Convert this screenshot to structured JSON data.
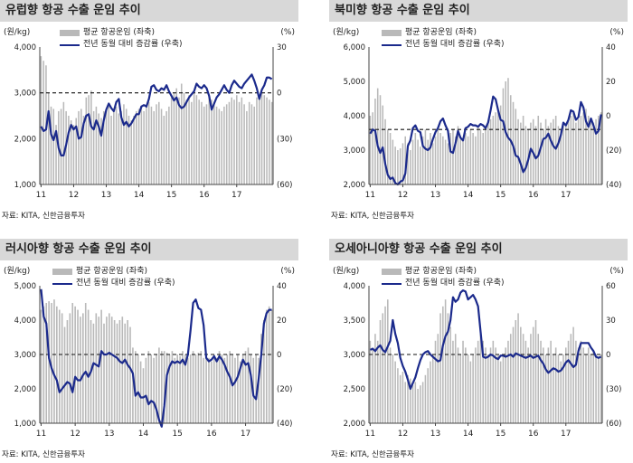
{
  "source_label": "자료: KITA, 신한금융투자",
  "legend": {
    "bar_label": "평균 항공운임 (좌축)",
    "line_label": "전년 동월 대비 증감률 (우축)"
  },
  "colors": {
    "bar": "#b9b9b9",
    "line": "#1b2a8c",
    "title_bg": "#d8d8d8"
  },
  "chart_data": [
    {
      "type": "bar+line",
      "title": "유럽향 항공 수출 운임 추이",
      "left_unit": "(원/kg)",
      "right_unit": "(%)",
      "ylim_left": [
        1000,
        4000
      ],
      "yticks_left": [
        "1,000",
        "2,000",
        "3,000",
        "4,000"
      ],
      "ylim_right": [
        -60,
        30
      ],
      "yticks_right": [
        "(60)",
        "(30)",
        "0",
        "30"
      ],
      "x_ticks": [
        "11",
        "12",
        "13",
        "14",
        "15",
        "16",
        "17"
      ],
      "series": [
        {
          "name": "평균 항공운임 (좌축)",
          "kind": "bar",
          "values": [
            3800,
            3700,
            3600,
            3000,
            2700,
            2650,
            2300,
            2600,
            2650,
            2800,
            2600,
            2500,
            2400,
            2300,
            2450,
            2600,
            2650,
            2500,
            2900,
            2950,
            3050,
            2600,
            2700,
            2550,
            2450,
            2600,
            2650,
            2700,
            2500,
            2600,
            2700,
            2550,
            2600,
            2750,
            2650,
            2500,
            2400,
            2500,
            2600,
            2650,
            2700,
            2600,
            2750,
            2800,
            2700,
            2600,
            2750,
            2800,
            2650,
            2500,
            2600,
            2700,
            2900,
            3000,
            3100,
            2900,
            3200,
            3000,
            2850,
            2950,
            2800,
            3000,
            2950,
            2850,
            2800,
            2700,
            2750,
            2900,
            2850,
            2800,
            2700,
            2650,
            2600,
            2700,
            2750,
            2800,
            2900,
            2850,
            2950,
            2800,
            2900,
            2750,
            2600,
            2800,
            2750,
            2700,
            2900,
            2950,
            3000,
            2950,
            2900,
            2850,
            2800
          ]
        },
        {
          "name": "전년 동월 대비 증감률 (우축)",
          "kind": "line",
          "values": [
            -22,
            -25,
            -24,
            -12,
            -27,
            -31,
            -25,
            -36,
            -41,
            -41,
            -34,
            -26,
            -21,
            -24,
            -22,
            -30,
            -29,
            -20,
            -15,
            -14,
            -22,
            -24,
            -18,
            -22,
            -28,
            -18,
            -11,
            -7,
            -10,
            -12,
            -6,
            -4,
            -16,
            -21,
            -19,
            -22,
            -20,
            -17,
            -14,
            -14,
            -9,
            -8,
            -9,
            -4,
            4,
            5,
            2,
            1,
            3,
            2,
            5,
            1,
            -2,
            -5,
            -3,
            -8,
            -10,
            -9,
            -6,
            -3,
            -1,
            1,
            6,
            4,
            3,
            5,
            3,
            -2,
            -11,
            -7,
            -3,
            -1,
            2,
            5,
            2,
            0,
            5,
            8,
            6,
            4,
            3,
            6,
            8,
            10,
            12,
            8,
            3,
            -4,
            2,
            5,
            10,
            10,
            9
          ]
        }
      ]
    },
    {
      "type": "bar+line",
      "title": "북미향 항공 수출 운임 추이",
      "left_unit": "(원/kg)",
      "right_unit": "(%)",
      "ylim_left": [
        2000,
        6000
      ],
      "yticks_left": [
        "2,000",
        "3,000",
        "4,000",
        "5,000",
        "6,000"
      ],
      "ylim_right": [
        -40,
        60
      ],
      "yticks_right": [
        "(40)",
        "(20)",
        "0",
        "20",
        "40"
      ],
      "x_ticks": [
        "11",
        "12",
        "13",
        "14",
        "15",
        "16",
        "17"
      ],
      "series": [
        {
          "name": "평균 항공운임 (좌축)",
          "kind": "bar",
          "values": [
            4000,
            4100,
            4500,
            4800,
            4600,
            4300,
            3900,
            3600,
            3500,
            3300,
            3100,
            3000,
            3050,
            3200,
            3400,
            3200,
            3000,
            3300,
            3500,
            3300,
            3100,
            3400,
            3600,
            3300,
            3500,
            3200,
            3400,
            3600,
            3500,
            3400,
            3300,
            3200,
            3500,
            3600,
            3400,
            3700,
            3400,
            3300,
            3500,
            3400,
            3600,
            3500,
            3400,
            3700,
            3600,
            3500,
            3700,
            3800,
            3900,
            4000,
            4100,
            4200,
            4300,
            4800,
            5000,
            5100,
            4600,
            4400,
            4200,
            3900,
            3800,
            4000,
            3700,
            3600,
            3800,
            3900,
            3700,
            4000,
            3800,
            3600,
            3900,
            3700,
            3800,
            3900,
            4000,
            3700,
            3600,
            3800,
            3700,
            3900,
            4000,
            4100,
            3800,
            3900,
            4000,
            4100,
            4200,
            4000,
            3900,
            3800,
            3900,
            4000,
            4100
          ]
        },
        {
          "name": "전년 동월 대비 증감률 (우축)",
          "kind": "line",
          "values": [
            -3,
            0,
            -1,
            -12,
            -17,
            -13,
            -25,
            -33,
            -36,
            -35,
            -39,
            -40,
            -38,
            -37,
            -32,
            -12,
            -8,
            1,
            3,
            -1,
            -2,
            -12,
            -14,
            -15,
            -13,
            -7,
            -2,
            1,
            6,
            8,
            3,
            -1,
            -16,
            -17,
            -10,
            -1,
            -6,
            -8,
            1,
            2,
            4,
            3,
            3,
            2,
            4,
            3,
            1,
            5,
            14,
            24,
            22,
            14,
            7,
            6,
            -2,
            -6,
            -8,
            -12,
            -19,
            -20,
            -25,
            -31,
            -28,
            -22,
            -14,
            -17,
            -21,
            -19,
            -13,
            -7,
            -6,
            -3,
            -8,
            -12,
            -14,
            -10,
            -4,
            5,
            3,
            7,
            14,
            13,
            7,
            9,
            20,
            16,
            6,
            2,
            8,
            3,
            -3,
            -1,
            11
          ]
        }
      ]
    },
    {
      "type": "bar+line",
      "title": "러시아향 항공 수출 운임 추이",
      "left_unit": "(원/kg)",
      "right_unit": "(%)",
      "ylim_left": [
        1000,
        5000
      ],
      "yticks_left": [
        "1,000",
        "2,000",
        "3,000",
        "4,000",
        "5,000"
      ],
      "ylim_right": [
        -40,
        40
      ],
      "yticks_right": [
        "(40)",
        "(20)",
        "0",
        "20",
        "40"
      ],
      "x_ticks": [
        "11",
        "12",
        "13",
        "14",
        "15",
        "16",
        "17"
      ],
      "series": [
        {
          "name": "평균 항공운임 (좌축)",
          "kind": "bar",
          "values": [
            4300,
            4400,
            4500,
            4550,
            4500,
            4600,
            4400,
            4300,
            4200,
            3800,
            4000,
            4200,
            4500,
            4400,
            4300,
            4100,
            4200,
            4500,
            4300,
            4000,
            3900,
            4200,
            4100,
            4300,
            3900,
            4100,
            4200,
            4100,
            4000,
            3900,
            4000,
            4100,
            3900,
            4000,
            3800,
            3200,
            3100,
            3000,
            2800,
            2600,
            2900,
            3100,
            3000,
            2900,
            3000,
            3200,
            3100,
            3100,
            3050,
            3000,
            3100,
            2900,
            3000,
            2950,
            3100,
            3000,
            2900,
            3000,
            3100,
            3000,
            3050,
            3100,
            2900,
            3000,
            2900,
            2800,
            3000,
            2900,
            3100,
            3000,
            2900,
            3000,
            3100,
            3000,
            2900,
            3000,
            2800,
            3000,
            3100,
            3200,
            3000,
            2900,
            3000,
            2900,
            3600,
            4000,
            4300,
            4400,
            4300
          ]
        },
        {
          "name": "전년 동월 대비 증감률 (우축)",
          "kind": "line",
          "values": [
            38,
            22,
            18,
            -2,
            -8,
            -12,
            -15,
            -22,
            -20,
            -18,
            -16,
            -17,
            -22,
            -13,
            -15,
            -15,
            -12,
            -10,
            -13,
            -10,
            -5,
            -6,
            -7,
            2,
            0,
            0,
            1,
            0,
            -1,
            -2,
            -4,
            -5,
            -3,
            -6,
            -8,
            -11,
            -24,
            -22,
            -25,
            -25,
            -24,
            -29,
            -27,
            -28,
            -32,
            -38,
            -42,
            -30,
            -12,
            -7,
            -4,
            -5,
            -4,
            -5,
            -3,
            -6,
            0,
            14,
            30,
            32,
            27,
            26,
            17,
            -2,
            -4,
            -3,
            -1,
            -4,
            -1,
            -3,
            -6,
            -10,
            -13,
            -18,
            -16,
            -13,
            -8,
            -3,
            -6,
            -5,
            -12,
            -24,
            -26,
            -14,
            0,
            18,
            24,
            26,
            26
          ]
        }
      ]
    },
    {
      "type": "bar+line",
      "title": "오세아니아향 항공 수출 운임 추이",
      "left_unit": "(원/kg)",
      "right_unit": "(%)",
      "ylim_left": [
        2000,
        4000
      ],
      "yticks_left": [
        "2,000",
        "2,500",
        "3,000",
        "3,500",
        "4,000"
      ],
      "ylim_right": [
        -60,
        60
      ],
      "yticks_right": [
        "(60)",
        "(30)",
        "0",
        "30",
        "60"
      ],
      "x_ticks": [
        "11",
        "12",
        "13",
        "14",
        "15",
        "16",
        "17"
      ],
      "series": [
        {
          "name": "평균 항공운임 (좌축)",
          "kind": "bar",
          "values": [
            3200,
            3100,
            3300,
            3200,
            3500,
            3600,
            3700,
            3800,
            3100,
            3000,
            2900,
            2800,
            2700,
            2750,
            2600,
            2700,
            2650,
            2550,
            2600,
            2500,
            2550,
            2600,
            2700,
            2800,
            2900,
            3000,
            3200,
            3300,
            3600,
            3700,
            3800,
            3600,
            3400,
            3200,
            3300,
            3100,
            3000,
            3200,
            3100,
            3000,
            2900,
            3000,
            3100,
            3200,
            3300,
            3200,
            3100,
            3000,
            3100,
            3200,
            3100,
            3000,
            2900,
            3000,
            3100,
            3200,
            3300,
            3400,
            3500,
            3600,
            3400,
            3300,
            3200,
            3100,
            3300,
            3400,
            3500,
            3300,
            3200,
            3100,
            3000,
            3100,
            3200,
            3000,
            3100,
            3000,
            2900,
            3000,
            3100,
            3200,
            3300,
            3400,
            3200,
            3100,
            3200,
            3100,
            3000,
            3100,
            3000,
            3050,
            3000,
            2950,
            3000
          ]
        },
        {
          "name": "전년 동월 대비 증감률 (우축)",
          "kind": "line",
          "values": [
            4,
            5,
            3,
            6,
            8,
            4,
            2,
            7,
            12,
            30,
            18,
            10,
            -3,
            -10,
            -15,
            -22,
            -30,
            -25,
            -20,
            -12,
            -5,
            0,
            2,
            3,
            0,
            -2,
            -4,
            -6,
            -5,
            8,
            16,
            20,
            30,
            50,
            46,
            48,
            54,
            56,
            55,
            48,
            50,
            52,
            48,
            42,
            20,
            -2,
            -3,
            -2,
            0,
            -1,
            -3,
            -4,
            -1,
            -1,
            -2,
            -1,
            0,
            -2,
            1,
            0,
            -1,
            -2,
            -3,
            -2,
            -1,
            -3,
            -2,
            -1,
            -5,
            -8,
            -13,
            -16,
            -14,
            -12,
            -13,
            -15,
            -14,
            -11,
            -7,
            -5,
            -8,
            -11,
            -9,
            3,
            10,
            10,
            10,
            10,
            6,
            3,
            -2,
            -3,
            -2
          ]
        }
      ]
    }
  ]
}
